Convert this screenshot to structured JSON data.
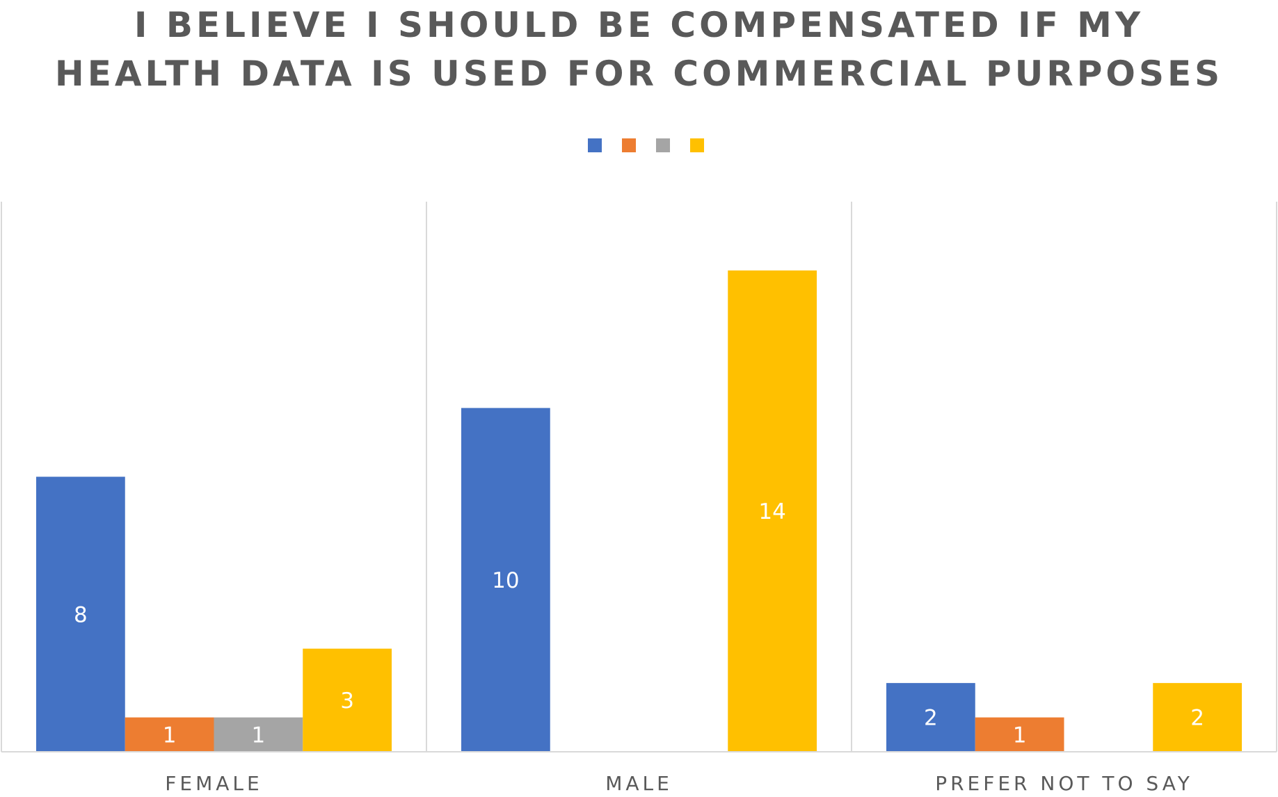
{
  "chart_data": {
    "type": "bar",
    "title_lines": [
      "I BELIEVE I SHOULD BE COMPENSATED IF MY",
      "HEALTH DATA IS USED FOR COMMERCIAL PURPOSES"
    ],
    "categories": [
      "FEMALE",
      "MALE",
      "PREFER NOT TO SAY"
    ],
    "series": [
      {
        "color": "#4472C4",
        "values": [
          8,
          10,
          2
        ]
      },
      {
        "color": "#ED7D31",
        "values": [
          1,
          null,
          1
        ]
      },
      {
        "color": "#A5A5A5",
        "values": [
          1,
          null,
          null
        ]
      },
      {
        "color": "#FFC000",
        "values": [
          3,
          14,
          2
        ]
      }
    ],
    "ylim": [
      0,
      16
    ],
    "legend_position": "top",
    "grid": false,
    "category_separators": true,
    "data_label_color": "#FFFFFF",
    "axis_label_color": "#595959",
    "separator_color": "#D9D9D9"
  }
}
